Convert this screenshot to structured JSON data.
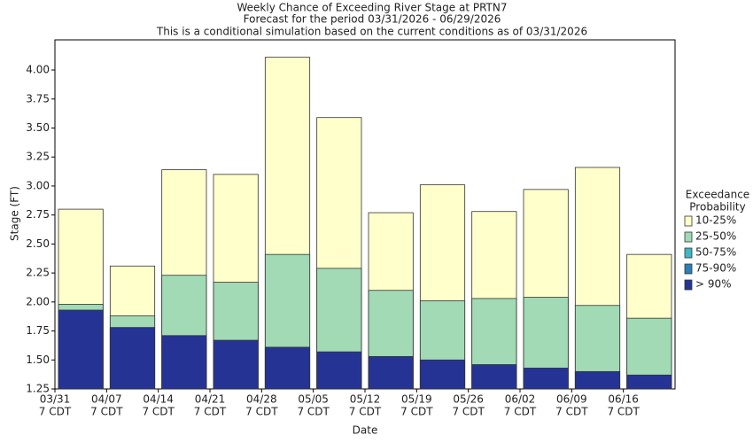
{
  "chart_data": {
    "type": "overlap_bar",
    "title": [
      "Weekly Chance of Exceeding River Stage at PRTN7",
      "Forecast for the period 03/31/2026 - 06/29/2026",
      "This is a conditional simulation based on the current conditions as of 03/31/2026"
    ],
    "x_label": "Date",
    "y_label": "Stage (FT)",
    "categories": [
      "03/31",
      "04/07",
      "04/14",
      "04/21",
      "04/28",
      "05/05",
      "05/12",
      "05/19",
      "05/26",
      "06/02",
      "06/09",
      "06/16"
    ],
    "category_suffix": "7 CDT",
    "legend_title": [
      "Exceedance",
      "Probability"
    ],
    "series": [
      {
        "name": "10-25%",
        "color": "#ffffcc",
        "values": [
          2.8,
          2.31,
          3.14,
          3.1,
          4.11,
          3.59,
          2.77,
          3.01,
          2.78,
          2.97,
          3.16,
          2.41
        ]
      },
      {
        "name": "25-50%",
        "color": "#a1dab4",
        "values": [
          1.98,
          1.88,
          2.23,
          2.17,
          2.41,
          2.29,
          2.1,
          2.01,
          2.03,
          2.04,
          1.97,
          1.86
        ]
      },
      {
        "name": "50-75%",
        "color": "#41b6c4",
        "values": [
          null,
          null,
          null,
          null,
          null,
          null,
          null,
          null,
          null,
          null,
          null,
          null
        ]
      },
      {
        "name": "75-90%",
        "color": "#2c7fb8",
        "values": [
          null,
          null,
          null,
          null,
          null,
          null,
          null,
          null,
          null,
          null,
          null,
          null
        ]
      },
      {
        "name": "> 90%",
        "color": "#253494",
        "values": [
          1.93,
          1.78,
          1.71,
          1.67,
          1.61,
          1.57,
          1.53,
          1.5,
          1.46,
          1.43,
          1.4,
          1.37
        ]
      }
    ],
    "ylim": [
      1.25,
      4.26
    ],
    "yticks": [
      1.25,
      {
        "value": 1.5,
        "label": "1.50"
      },
      1.75,
      {
        "value": 2,
        "label": "2.00"
      },
      2.25,
      {
        "value": 2.5,
        "label": "2.50"
      },
      2.75,
      {
        "value": 3,
        "label": "3.00"
      },
      3.25,
      {
        "value": 3.5,
        "label": "3.50"
      },
      3.75,
      {
        "value": 4,
        "label": "4.00"
      }
    ],
    "grid": false,
    "legend": "right"
  }
}
